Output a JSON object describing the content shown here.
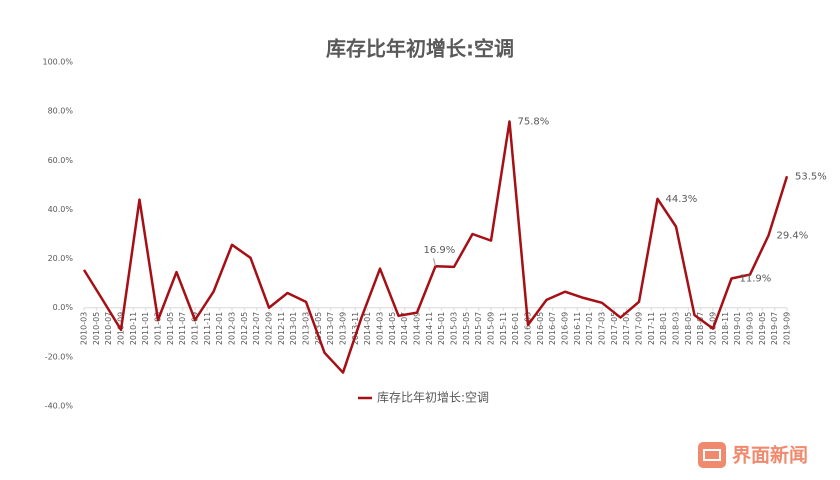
{
  "chart_data": {
    "type": "line",
    "title": "库存比年初增长:空调",
    "x": [
      "2010-03",
      "2010-06",
      "2010-09",
      "2010-12",
      "2011-03",
      "2011-06",
      "2011-09",
      "2011-12",
      "2012-03",
      "2012-06",
      "2012-09",
      "2012-12",
      "2013-03",
      "2013-06",
      "2013-09",
      "2013-12",
      "2014-03",
      "2014-06",
      "2014-09",
      "2014-12",
      "2015-03",
      "2015-06",
      "2015-09",
      "2015-12",
      "2016-03",
      "2016-06",
      "2016-09",
      "2016-12",
      "2017-03",
      "2017-06",
      "2017-09",
      "2017-12",
      "2018-03",
      "2018-06",
      "2018-09",
      "2018-12",
      "2019-03",
      "2019-06",
      "2019-09"
    ],
    "xticks": [
      "2010-03",
      "2010-05",
      "2010-07",
      "2010-09",
      "2010-11",
      "2011-01",
      "2011-03",
      "2011-05",
      "2011-07",
      "2011-09",
      "2011-11",
      "2012-01",
      "2012-03",
      "2012-05",
      "2012-07",
      "2012-09",
      "2012-11",
      "2013-01",
      "2013-03",
      "2013-05",
      "2013-07",
      "2013-09",
      "2013-11",
      "2014-01",
      "2014-03",
      "2014-05",
      "2014-07",
      "2014-09",
      "2014-11",
      "2015-01",
      "2015-03",
      "2015-05",
      "2015-07",
      "2015-09",
      "2015-11",
      "2016-01",
      "2016-03",
      "2016-05",
      "2016-07",
      "2016-09",
      "2016-11",
      "2017-01",
      "2017-03",
      "2017-05",
      "2017-07",
      "2017-09",
      "2017-11",
      "2018-01",
      "2018-03",
      "2018-05",
      "2018-07",
      "2018-09",
      "2018-11",
      "2019-01",
      "2019-03",
      "2019-05",
      "2019-07",
      "2019-09"
    ],
    "series": [
      {
        "name": "库存比年初增长:空调",
        "color": "#a50f15",
        "values": [
          15.4,
          3.3,
          -9,
          44,
          -5,
          14.5,
          -5,
          6.5,
          25.6,
          20.3,
          0,
          6,
          2.4,
          -18.3,
          -26.4,
          -4,
          15.9,
          -3.3,
          -2,
          16.9,
          16.6,
          30,
          27.3,
          75.8,
          -7,
          3.2,
          6.5,
          4,
          2,
          -4,
          2.4,
          44.3,
          33,
          -3,
          -8.5,
          11.9,
          13.5,
          29.4,
          53.5
        ],
        "value_labels": [
          null,
          null,
          null,
          null,
          null,
          null,
          null,
          null,
          null,
          null,
          null,
          null,
          null,
          null,
          null,
          null,
          null,
          null,
          null,
          "16.9%",
          null,
          null,
          null,
          "75.8%",
          null,
          null,
          null,
          null,
          null,
          null,
          null,
          "44.3%",
          null,
          null,
          null,
          "11.9%",
          null,
          "29.4%",
          "53.5%"
        ]
      }
    ],
    "ylim": [
      -40,
      100
    ],
    "yticks": [
      {
        "value": -40,
        "label": "-40.0%"
      },
      {
        "value": -20,
        "label": "-20.0%"
      },
      {
        "value": 0,
        "label": "0.0%"
      },
      {
        "value": 20,
        "label": "20.0%"
      },
      {
        "value": 40,
        "label": "40.0%"
      },
      {
        "value": 60,
        "label": "60.0%"
      },
      {
        "value": 80,
        "label": "80.0%"
      },
      {
        "value": 100,
        "label": "100.0%"
      }
    ],
    "legend": "bottom",
    "watermark": "界面新闻"
  }
}
